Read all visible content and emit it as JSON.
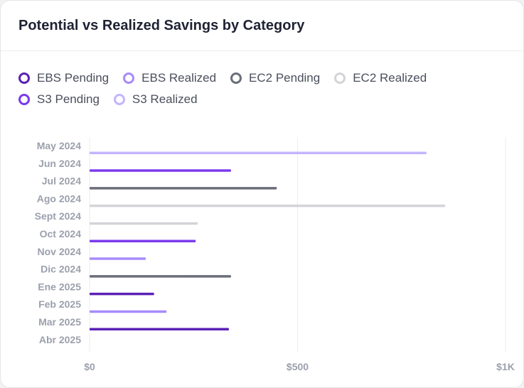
{
  "title": "Potential vs Realized Savings by Category",
  "legend": [
    {
      "label": "EBS Pending",
      "color": "#5b21b6"
    },
    {
      "label": "EBS Realized",
      "color": "#a78bfa"
    },
    {
      "label": "EC2 Pending",
      "color": "#6b6f7a"
    },
    {
      "label": "EC2 Realized",
      "color": "#d4d4d8"
    },
    {
      "label": "S3 Pending",
      "color": "#7c3aed"
    },
    {
      "label": "S3 Realized",
      "color": "#c4b5fd"
    }
  ],
  "chart_data": {
    "type": "bar",
    "orientation": "horizontal",
    "categories": [
      "May 2024",
      "Jun 2024",
      "Jul 2024",
      "Ago 2024",
      "Sept 2024",
      "Oct 2024",
      "Nov 2024",
      "Dic 2024",
      "Ene 2025",
      "Feb 2025",
      "Mar 2025",
      "Abr 2025"
    ],
    "x_ticks": [
      "$0",
      "$500",
      "$1K"
    ],
    "xlim": [
      0,
      1000
    ],
    "grid": true,
    "legend_position": "top-left",
    "bars": [
      {
        "category": "May 2024",
        "series": "S3 Realized",
        "value": 810
      },
      {
        "category": "Jun 2024",
        "series": "S3 Pending",
        "value": 340
      },
      {
        "category": "Jul 2024",
        "series": "EC2 Pending",
        "value": 450
      },
      {
        "category": "Ago 2024",
        "series": "EC2 Realized",
        "value": 855
      },
      {
        "category": "Sept 2024",
        "series": "EC2 Realized",
        "value": 260
      },
      {
        "category": "Oct 2024",
        "series": "S3 Pending",
        "value": 255
      },
      {
        "category": "Nov 2024",
        "series": "EBS Realized",
        "value": 135
      },
      {
        "category": "Dic 2024",
        "series": "EC2 Pending",
        "value": 340
      },
      {
        "category": "Ene 2025",
        "series": "EBS Pending",
        "value": 155
      },
      {
        "category": "Feb 2025",
        "series": "EBS Realized",
        "value": 185
      },
      {
        "category": "Mar 2025",
        "series": "EBS Pending",
        "value": 335
      }
    ]
  }
}
